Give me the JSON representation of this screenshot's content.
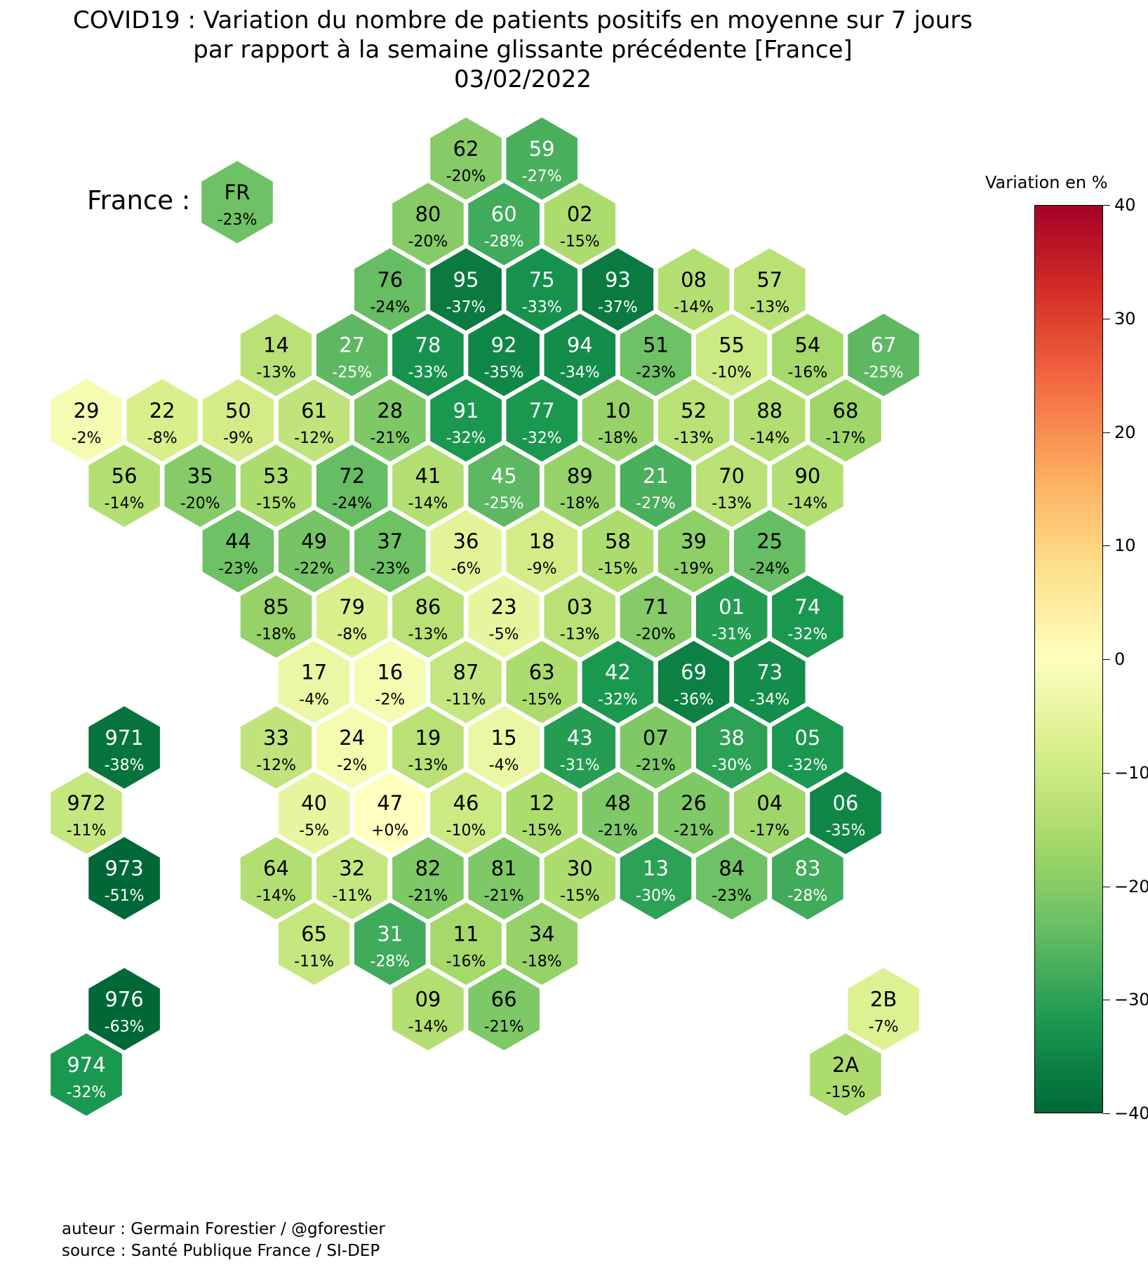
{
  "title": {
    "line1": "COVID19 : Variation du nombre de patients positifs en moyenne sur 7 jours",
    "line2": "par rapport à la semaine glissante précédente [France]",
    "line3": "03/02/2022"
  },
  "france_label": "France :",
  "colorbar": {
    "title": "Variation en %",
    "min": -40,
    "max": 40,
    "ticks": [
      "40",
      "30",
      "20",
      "10",
      "0",
      "−10",
      "−20",
      "−30",
      "−40"
    ],
    "colormap": "RdYlGn_r"
  },
  "credits": {
    "author": "auteur : Germain Forestier / @gforestier",
    "source": "source : Santé Publique France / SI-DEP"
  },
  "chart_data": {
    "type": "hexagonal tile map",
    "value_unit": "%",
    "national": {
      "code": "FR",
      "label": "-23%",
      "value": -23
    },
    "departments": [
      {
        "code": "62",
        "label": "-20%",
        "value": -20,
        "row": 0,
        "col": 10
      },
      {
        "code": "59",
        "label": "-27%",
        "value": -27,
        "row": 0,
        "col": 12
      },
      {
        "code": "80",
        "label": "-20%",
        "value": -20,
        "row": 1,
        "col": 9
      },
      {
        "code": "60",
        "label": "-28%",
        "value": -28,
        "row": 1,
        "col": 11
      },
      {
        "code": "02",
        "label": "-15%",
        "value": -15,
        "row": 1,
        "col": 13
      },
      {
        "code": "76",
        "label": "-24%",
        "value": -24,
        "row": 2,
        "col": 8
      },
      {
        "code": "95",
        "label": "-37%",
        "value": -37,
        "row": 2,
        "col": 10
      },
      {
        "code": "75",
        "label": "-33%",
        "value": -33,
        "row": 2,
        "col": 12
      },
      {
        "code": "93",
        "label": "-37%",
        "value": -37,
        "row": 2,
        "col": 14
      },
      {
        "code": "08",
        "label": "-14%",
        "value": -14,
        "row": 2,
        "col": 16
      },
      {
        "code": "57",
        "label": "-13%",
        "value": -13,
        "row": 2,
        "col": 18
      },
      {
        "code": "14",
        "label": "-13%",
        "value": -13,
        "row": 3,
        "col": 5
      },
      {
        "code": "27",
        "label": "-25%",
        "value": -25,
        "row": 3,
        "col": 7
      },
      {
        "code": "78",
        "label": "-33%",
        "value": -33,
        "row": 3,
        "col": 9
      },
      {
        "code": "92",
        "label": "-35%",
        "value": -35,
        "row": 3,
        "col": 11
      },
      {
        "code": "94",
        "label": "-34%",
        "value": -34,
        "row": 3,
        "col": 13
      },
      {
        "code": "51",
        "label": "-23%",
        "value": -23,
        "row": 3,
        "col": 15
      },
      {
        "code": "55",
        "label": "-10%",
        "value": -10,
        "row": 3,
        "col": 17
      },
      {
        "code": "54",
        "label": "-16%",
        "value": -16,
        "row": 3,
        "col": 19
      },
      {
        "code": "67",
        "label": "-25%",
        "value": -25,
        "row": 3,
        "col": 21
      },
      {
        "code": "29",
        "label": "-2%",
        "value": -2,
        "row": 4,
        "col": 0
      },
      {
        "code": "22",
        "label": "-8%",
        "value": -8,
        "row": 4,
        "col": 2
      },
      {
        "code": "50",
        "label": "-9%",
        "value": -9,
        "row": 4,
        "col": 4
      },
      {
        "code": "61",
        "label": "-12%",
        "value": -12,
        "row": 4,
        "col": 6
      },
      {
        "code": "28",
        "label": "-21%",
        "value": -21,
        "row": 4,
        "col": 8
      },
      {
        "code": "91",
        "label": "-32%",
        "value": -32,
        "row": 4,
        "col": 10
      },
      {
        "code": "77",
        "label": "-32%",
        "value": -32,
        "row": 4,
        "col": 12
      },
      {
        "code": "10",
        "label": "-18%",
        "value": -18,
        "row": 4,
        "col": 14
      },
      {
        "code": "52",
        "label": "-13%",
        "value": -13,
        "row": 4,
        "col": 16
      },
      {
        "code": "88",
        "label": "-14%",
        "value": -14,
        "row": 4,
        "col": 18
      },
      {
        "code": "68",
        "label": "-17%",
        "value": -17,
        "row": 4,
        "col": 20
      },
      {
        "code": "56",
        "label": "-14%",
        "value": -14,
        "row": 5,
        "col": 1
      },
      {
        "code": "35",
        "label": "-20%",
        "value": -20,
        "row": 5,
        "col": 3
      },
      {
        "code": "53",
        "label": "-15%",
        "value": -15,
        "row": 5,
        "col": 5
      },
      {
        "code": "72",
        "label": "-24%",
        "value": -24,
        "row": 5,
        "col": 7
      },
      {
        "code": "41",
        "label": "-14%",
        "value": -14,
        "row": 5,
        "col": 9
      },
      {
        "code": "45",
        "label": "-25%",
        "value": -25,
        "row": 5,
        "col": 11
      },
      {
        "code": "89",
        "label": "-18%",
        "value": -18,
        "row": 5,
        "col": 13
      },
      {
        "code": "21",
        "label": "-27%",
        "value": -27,
        "row": 5,
        "col": 15
      },
      {
        "code": "70",
        "label": "-13%",
        "value": -13,
        "row": 5,
        "col": 17
      },
      {
        "code": "90",
        "label": "-14%",
        "value": -14,
        "row": 5,
        "col": 19
      },
      {
        "code": "44",
        "label": "-23%",
        "value": -23,
        "row": 6,
        "col": 4
      },
      {
        "code": "49",
        "label": "-22%",
        "value": -22,
        "row": 6,
        "col": 6
      },
      {
        "code": "37",
        "label": "-23%",
        "value": -23,
        "row": 6,
        "col": 8
      },
      {
        "code": "36",
        "label": "-6%",
        "value": -6,
        "row": 6,
        "col": 10
      },
      {
        "code": "18",
        "label": "-9%",
        "value": -9,
        "row": 6,
        "col": 12
      },
      {
        "code": "58",
        "label": "-15%",
        "value": -15,
        "row": 6,
        "col": 14
      },
      {
        "code": "39",
        "label": "-19%",
        "value": -19,
        "row": 6,
        "col": 16
      },
      {
        "code": "25",
        "label": "-24%",
        "value": -24,
        "row": 6,
        "col": 18
      },
      {
        "code": "85",
        "label": "-18%",
        "value": -18,
        "row": 7,
        "col": 5
      },
      {
        "code": "79",
        "label": "-8%",
        "value": -8,
        "row": 7,
        "col": 7
      },
      {
        "code": "86",
        "label": "-13%",
        "value": -13,
        "row": 7,
        "col": 9
      },
      {
        "code": "23",
        "label": "-5%",
        "value": -5,
        "row": 7,
        "col": 11
      },
      {
        "code": "03",
        "label": "-13%",
        "value": -13,
        "row": 7,
        "col": 13
      },
      {
        "code": "71",
        "label": "-20%",
        "value": -20,
        "row": 7,
        "col": 15
      },
      {
        "code": "01",
        "label": "-31%",
        "value": -31,
        "row": 7,
        "col": 17
      },
      {
        "code": "74",
        "label": "-32%",
        "value": -32,
        "row": 7,
        "col": 19
      },
      {
        "code": "17",
        "label": "-4%",
        "value": -4,
        "row": 8,
        "col": 6
      },
      {
        "code": "16",
        "label": "-2%",
        "value": -2,
        "row": 8,
        "col": 8
      },
      {
        "code": "87",
        "label": "-11%",
        "value": -11,
        "row": 8,
        "col": 10
      },
      {
        "code": "63",
        "label": "-15%",
        "value": -15,
        "row": 8,
        "col": 12
      },
      {
        "code": "42",
        "label": "-32%",
        "value": -32,
        "row": 8,
        "col": 14
      },
      {
        "code": "69",
        "label": "-36%",
        "value": -36,
        "row": 8,
        "col": 16
      },
      {
        "code": "73",
        "label": "-34%",
        "value": -34,
        "row": 8,
        "col": 18
      },
      {
        "code": "971",
        "label": "-38%",
        "value": -38,
        "row": 9,
        "col": 1
      },
      {
        "code": "33",
        "label": "-12%",
        "value": -12,
        "row": 9,
        "col": 5
      },
      {
        "code": "24",
        "label": "-2%",
        "value": -2,
        "row": 9,
        "col": 7
      },
      {
        "code": "19",
        "label": "-13%",
        "value": -13,
        "row": 9,
        "col": 9
      },
      {
        "code": "15",
        "label": "-4%",
        "value": -4,
        "row": 9,
        "col": 11
      },
      {
        "code": "43",
        "label": "-31%",
        "value": -31,
        "row": 9,
        "col": 13
      },
      {
        "code": "07",
        "label": "-21%",
        "value": -21,
        "row": 9,
        "col": 15
      },
      {
        "code": "38",
        "label": "-30%",
        "value": -30,
        "row": 9,
        "col": 17
      },
      {
        "code": "05",
        "label": "-32%",
        "value": -32,
        "row": 9,
        "col": 19
      },
      {
        "code": "972",
        "label": "-11%",
        "value": -11,
        "row": 10,
        "col": 0
      },
      {
        "code": "40",
        "label": "-5%",
        "value": -5,
        "row": 10,
        "col": 6
      },
      {
        "code": "47",
        "label": "+0%",
        "value": 0,
        "row": 10,
        "col": 8
      },
      {
        "code": "46",
        "label": "-10%",
        "value": -10,
        "row": 10,
        "col": 10
      },
      {
        "code": "12",
        "label": "-15%",
        "value": -15,
        "row": 10,
        "col": 12
      },
      {
        "code": "48",
        "label": "-21%",
        "value": -21,
        "row": 10,
        "col": 14
      },
      {
        "code": "26",
        "label": "-21%",
        "value": -21,
        "row": 10,
        "col": 16
      },
      {
        "code": "04",
        "label": "-17%",
        "value": -17,
        "row": 10,
        "col": 18
      },
      {
        "code": "06",
        "label": "-35%",
        "value": -35,
        "row": 10,
        "col": 20
      },
      {
        "code": "973",
        "label": "-51%",
        "value": -51,
        "row": 11,
        "col": 1
      },
      {
        "code": "64",
        "label": "-14%",
        "value": -14,
        "row": 11,
        "col": 5
      },
      {
        "code": "32",
        "label": "-11%",
        "value": -11,
        "row": 11,
        "col": 7
      },
      {
        "code": "82",
        "label": "-21%",
        "value": -21,
        "row": 11,
        "col": 9
      },
      {
        "code": "81",
        "label": "-21%",
        "value": -21,
        "row": 11,
        "col": 11
      },
      {
        "code": "30",
        "label": "-15%",
        "value": -15,
        "row": 11,
        "col": 13
      },
      {
        "code": "13",
        "label": "-30%",
        "value": -30,
        "row": 11,
        "col": 15
      },
      {
        "code": "84",
        "label": "-23%",
        "value": -23,
        "row": 11,
        "col": 17
      },
      {
        "code": "83",
        "label": "-28%",
        "value": -28,
        "row": 11,
        "col": 19
      },
      {
        "code": "65",
        "label": "-11%",
        "value": -11,
        "row": 12,
        "col": 6
      },
      {
        "code": "31",
        "label": "-28%",
        "value": -28,
        "row": 12,
        "col": 8
      },
      {
        "code": "11",
        "label": "-16%",
        "value": -16,
        "row": 12,
        "col": 10
      },
      {
        "code": "34",
        "label": "-18%",
        "value": -18,
        "row": 12,
        "col": 12
      },
      {
        "code": "976",
        "label": "-63%",
        "value": -63,
        "row": 13,
        "col": 1
      },
      {
        "code": "09",
        "label": "-14%",
        "value": -14,
        "row": 13,
        "col": 9
      },
      {
        "code": "66",
        "label": "-21%",
        "value": -21,
        "row": 13,
        "col": 11
      },
      {
        "code": "2B",
        "label": "-7%",
        "value": -7,
        "row": 13,
        "col": 21
      },
      {
        "code": "974",
        "label": "-32%",
        "value": -32,
        "row": 14,
        "col": 0
      },
      {
        "code": "2A",
        "label": "-15%",
        "value": -15,
        "row": 14,
        "col": 20
      }
    ]
  }
}
